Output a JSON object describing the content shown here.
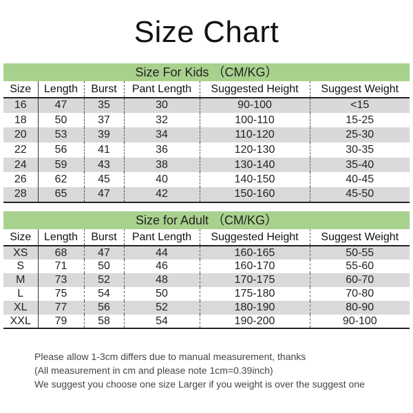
{
  "title": "Size Chart",
  "colors": {
    "band": "#a9d18e",
    "stripe": "#d9d9d9"
  },
  "columns": [
    "Size",
    "Length",
    "Burst",
    "Pant Length",
    "Suggested Height",
    "Suggest Weight"
  ],
  "kids": {
    "heading": "Size For Kids （CM/KG）",
    "rows": [
      [
        "16",
        "47",
        "35",
        "30",
        "90-100",
        "<15"
      ],
      [
        "18",
        "50",
        "37",
        "32",
        "100-110",
        "15-25"
      ],
      [
        "20",
        "53",
        "39",
        "34",
        "110-120",
        "25-30"
      ],
      [
        "22",
        "56",
        "41",
        "36",
        "120-130",
        "30-35"
      ],
      [
        "24",
        "59",
        "43",
        "38",
        "130-140",
        "35-40"
      ],
      [
        "26",
        "62",
        "45",
        "40",
        "140-150",
        "40-45"
      ],
      [
        "28",
        "65",
        "47",
        "42",
        "150-160",
        "45-50"
      ]
    ]
  },
  "adult": {
    "heading": "Size for Adult （CM/KG）",
    "rows": [
      [
        "XS",
        "68",
        "47",
        "44",
        "160-165",
        "50-55"
      ],
      [
        "S",
        "71",
        "50",
        "46",
        "160-170",
        "55-60"
      ],
      [
        "M",
        "73",
        "52",
        "48",
        "170-175",
        "60-70"
      ],
      [
        "L",
        "75",
        "54",
        "50",
        "175-180",
        "70-80"
      ],
      [
        "XL",
        "77",
        "56",
        "52",
        "180-190",
        "80-90"
      ],
      [
        "XXL",
        "79",
        "58",
        "54",
        "190-200",
        "90-100"
      ]
    ]
  },
  "notes": [
    "Please allow 1-3cm differs due to manual measurement, thanks",
    "(All measurement in cm and please note 1cm=0.39inch)",
    "We suggest you choose one size Larger if you weight is over the suggest one"
  ]
}
